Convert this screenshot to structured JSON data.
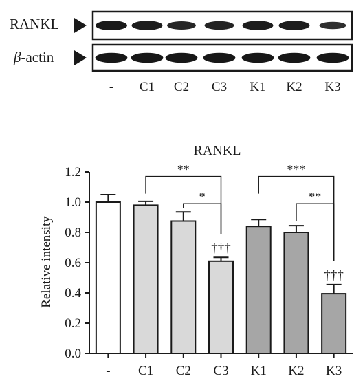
{
  "blot": {
    "rows": [
      {
        "label_prefix": "",
        "label_italic": "",
        "label_main": "RANKL",
        "intensities": [
          0.9,
          0.85,
          0.7,
          0.75,
          0.85,
          0.85,
          0.55
        ]
      },
      {
        "label_prefix": "",
        "label_italic": "β",
        "label_main": "-actin",
        "intensities": [
          0.95,
          0.95,
          0.95,
          0.95,
          0.95,
          0.95,
          0.95
        ]
      }
    ],
    "lanes": [
      "-",
      "C1",
      "C2",
      "C3",
      "K1",
      "K2",
      "K3"
    ]
  },
  "chart_data": {
    "type": "bar",
    "title": "RANKL",
    "ylabel": "Relative intensity",
    "xlabel": "",
    "categories": [
      "-",
      "C1",
      "C2",
      "C3",
      "K1",
      "K2",
      "K3"
    ],
    "values": [
      1.0,
      0.98,
      0.875,
      0.61,
      0.84,
      0.8,
      0.395
    ],
    "errors": [
      0.05,
      0.025,
      0.06,
      0.025,
      0.045,
      0.045,
      0.06
    ],
    "bar_colors": [
      "#ffffff",
      "#d9d9d9",
      "#d9d9d9",
      "#d9d9d9",
      "#a6a6a6",
      "#a6a6a6",
      "#a6a6a6"
    ],
    "ylim": [
      0,
      1.2
    ],
    "yticks": [
      0.0,
      0.2,
      0.4,
      0.6,
      0.8,
      1.0,
      1.2
    ],
    "ytick_labels": [
      "0.0",
      "0.2",
      "0.4",
      "0.6",
      "0.8",
      "1.0",
      "1.2"
    ],
    "daggers": [
      {
        "bar": 3,
        "label": "†††"
      },
      {
        "bar": 6,
        "label": "†††"
      }
    ],
    "brackets": [
      {
        "from": 1,
        "to": 3,
        "label": "**",
        "y": 1.17
      },
      {
        "from": 2,
        "to": 3,
        "label": "*",
        "y": 0.99
      },
      {
        "from": 4,
        "to": 6,
        "label": "***",
        "y": 1.17
      },
      {
        "from": 5,
        "to": 6,
        "label": "**",
        "y": 0.99
      }
    ]
  }
}
